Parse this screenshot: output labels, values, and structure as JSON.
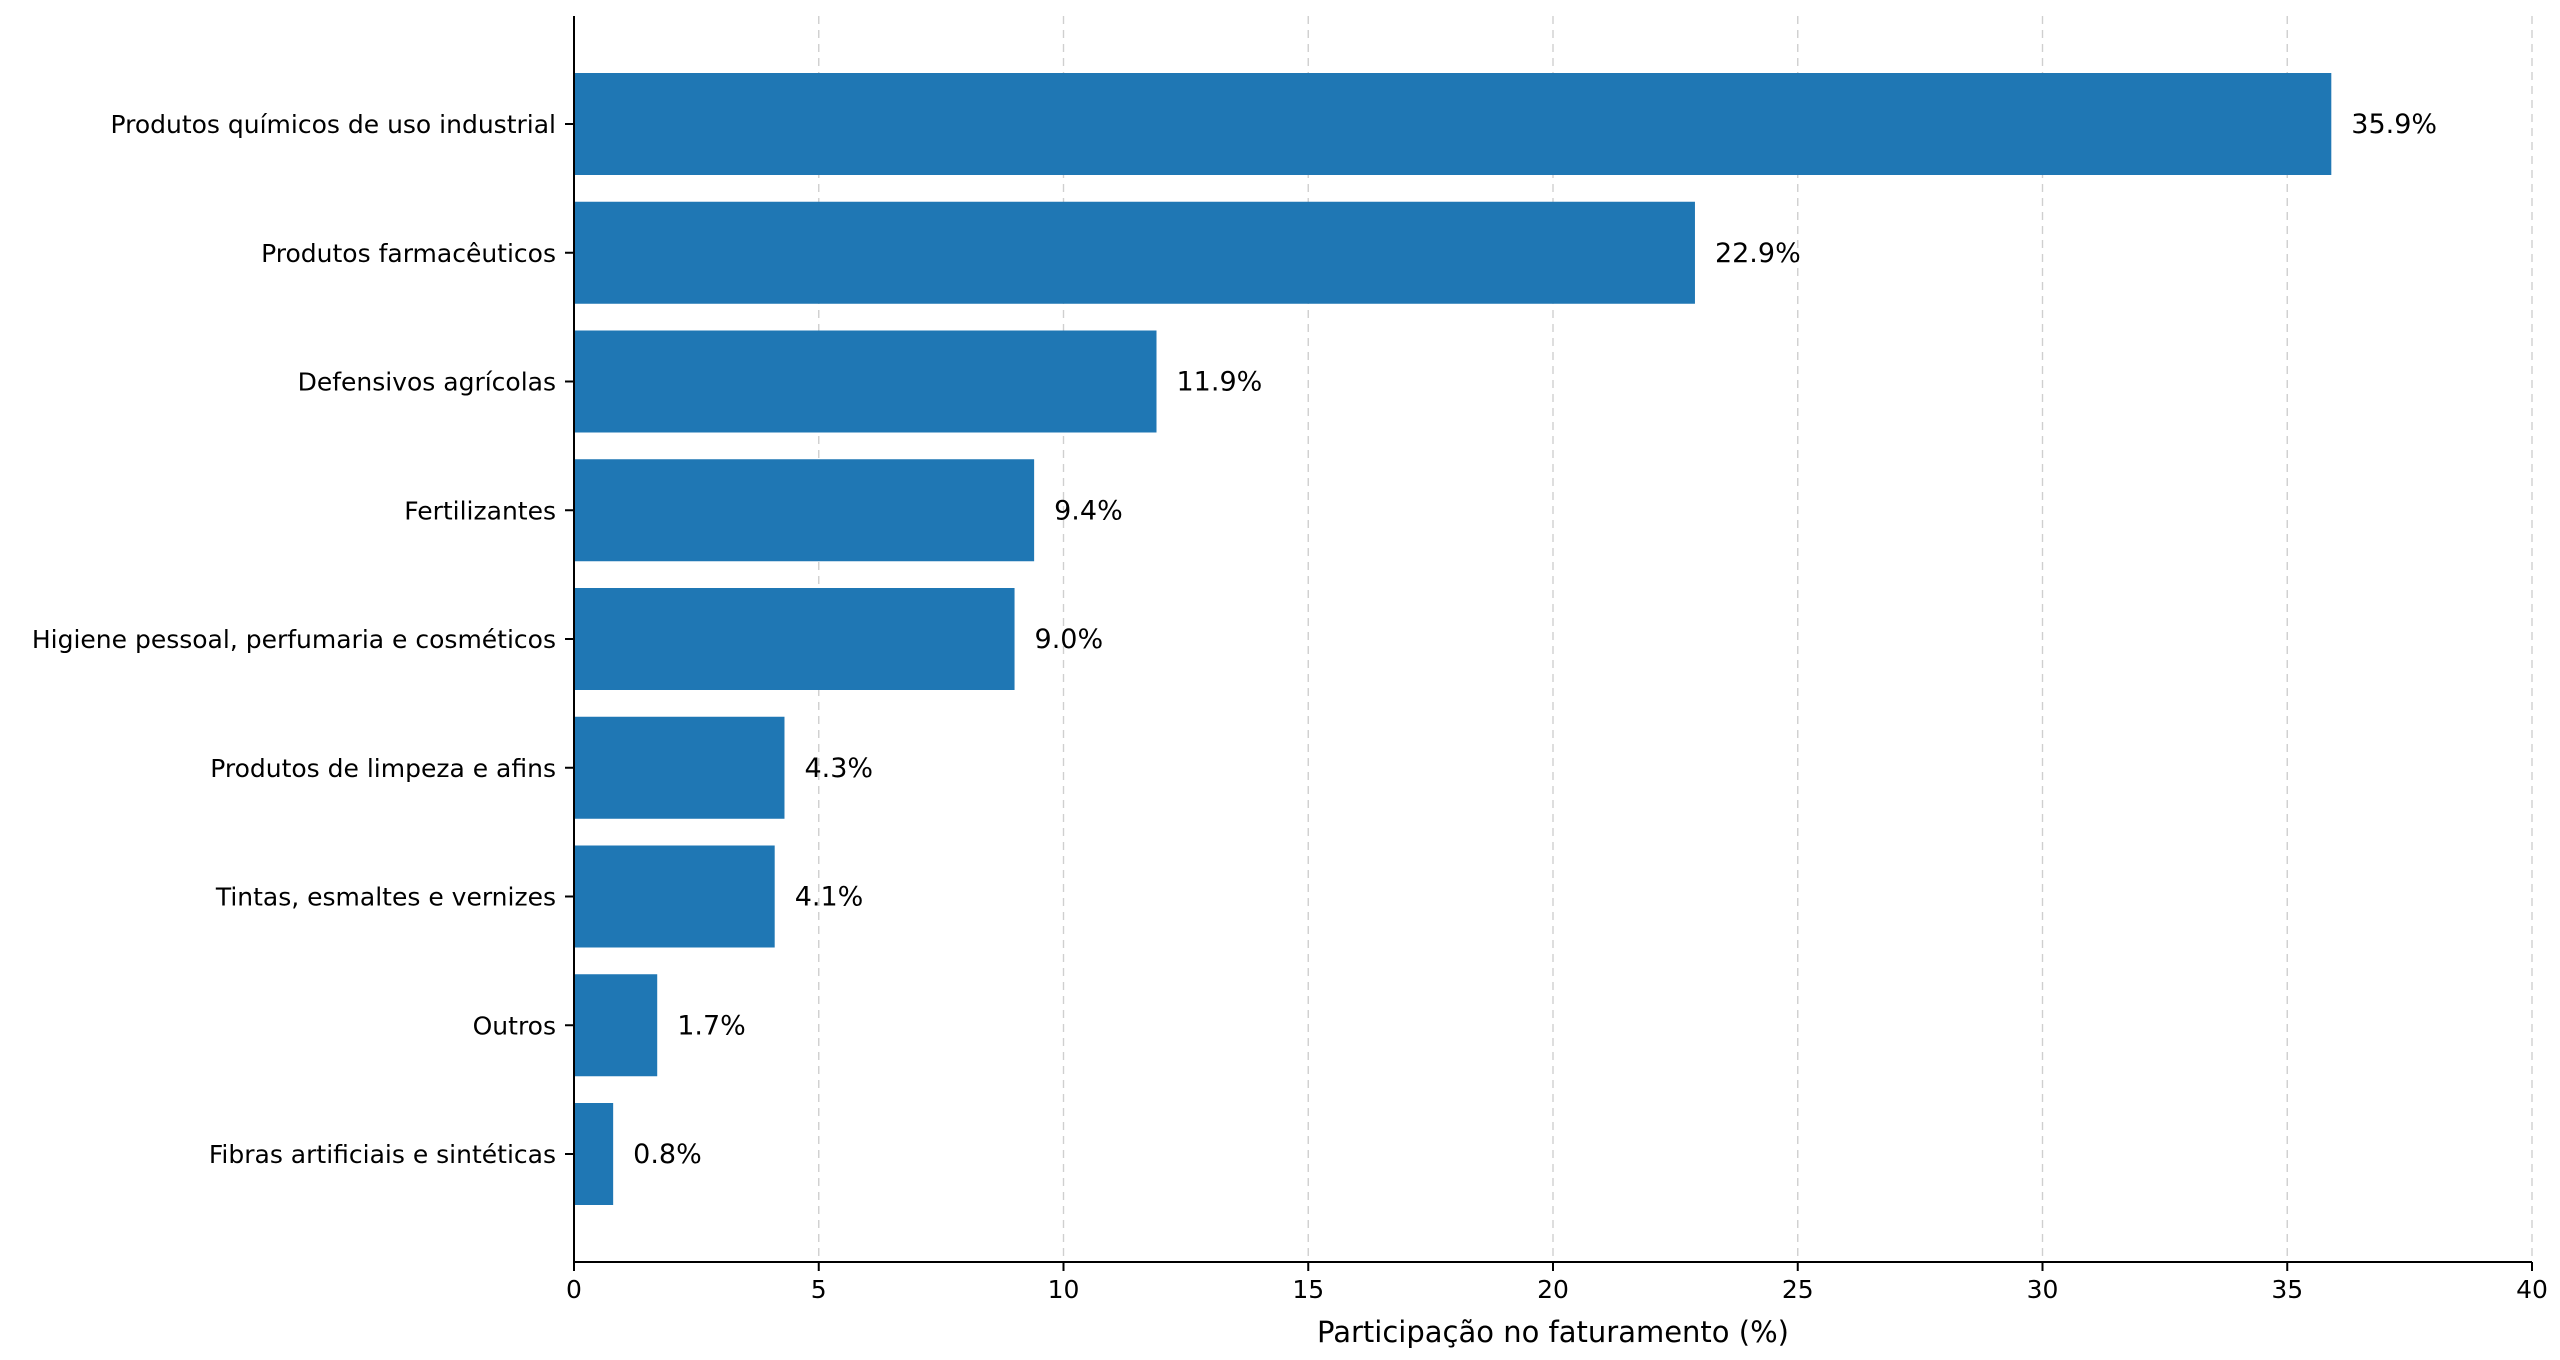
{
  "chart_data": {
    "type": "bar",
    "orientation": "horizontal",
    "categories": [
      "Produtos químicos de uso industrial",
      "Produtos farmacêuticos",
      "Defensivos agrícolas",
      "Fertilizantes",
      "Higiene pessoal, perfumaria e cosméticos",
      "Produtos de limpeza e afins",
      "Tintas, esmaltes e vernizes",
      "Outros",
      "Fibras artificiais e sintéticas"
    ],
    "values": [
      35.9,
      22.9,
      11.9,
      9.4,
      9.0,
      4.3,
      4.1,
      1.7,
      0.8
    ],
    "data_labels": [
      "35.9%",
      "22.9%",
      "11.9%",
      "9.4%",
      "9.0%",
      "4.3%",
      "4.1%",
      "1.7%",
      "0.8%"
    ],
    "title": "",
    "xlabel": "Participação no faturamento (%)",
    "ylabel": "",
    "xlim": [
      0,
      40
    ],
    "xticks": [
      0,
      5,
      10,
      15,
      20,
      25,
      30,
      35,
      40
    ],
    "xtick_labels": [
      "0",
      "5",
      "10",
      "15",
      "20",
      "25",
      "30",
      "35",
      "40"
    ],
    "grid": "x, dashed",
    "bar_color": "#1f77b4"
  }
}
